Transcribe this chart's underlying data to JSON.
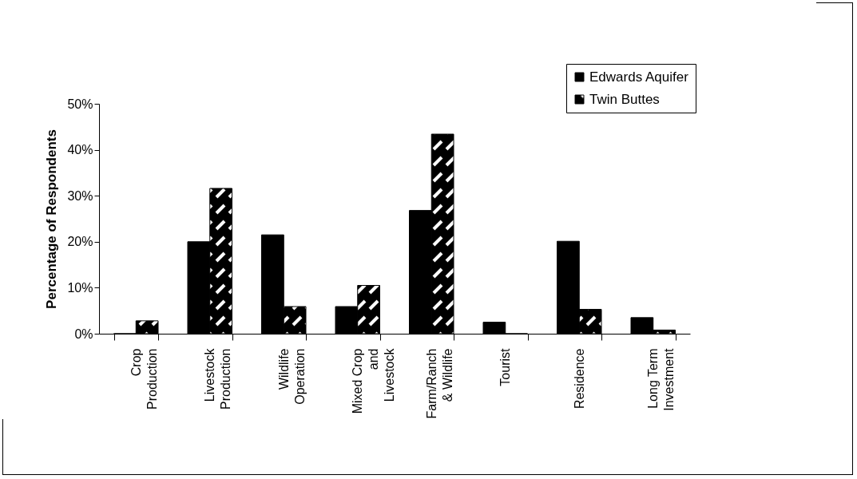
{
  "chart_data": {
    "type": "bar",
    "ylabel": "Percentage of Respondents",
    "categories": [
      "Crop Production",
      "Livestock Production",
      "Wildlife Operation",
      "Mixed Crop and Livestock",
      "Farm/Ranch & Wildlife",
      "Tourist",
      "Residence",
      "Long Term Investment"
    ],
    "series": [
      {
        "name": "Edwards Aquifer",
        "color": "#000000",
        "values": [
          0,
          20,
          21.5,
          5.9,
          26.8,
          2.5,
          20.1,
          3.5
        ]
      },
      {
        "name": "Twin Buttes",
        "color": "#000000",
        "values": [
          2.8,
          31.6,
          5.9,
          10.5,
          43.4,
          0,
          5.3,
          0.8
        ]
      }
    ],
    "ylim": [
      0,
      50
    ],
    "yticks": [
      {
        "value": 0,
        "label": "0%"
      },
      {
        "value": 10,
        "label": "10%"
      },
      {
        "value": 20,
        "label": "20%"
      },
      {
        "value": 30,
        "label": "30%"
      },
      {
        "value": 40,
        "label": "40%"
      },
      {
        "value": 50,
        "label": "50%"
      }
    ],
    "grid": false,
    "legend": "top right"
  }
}
